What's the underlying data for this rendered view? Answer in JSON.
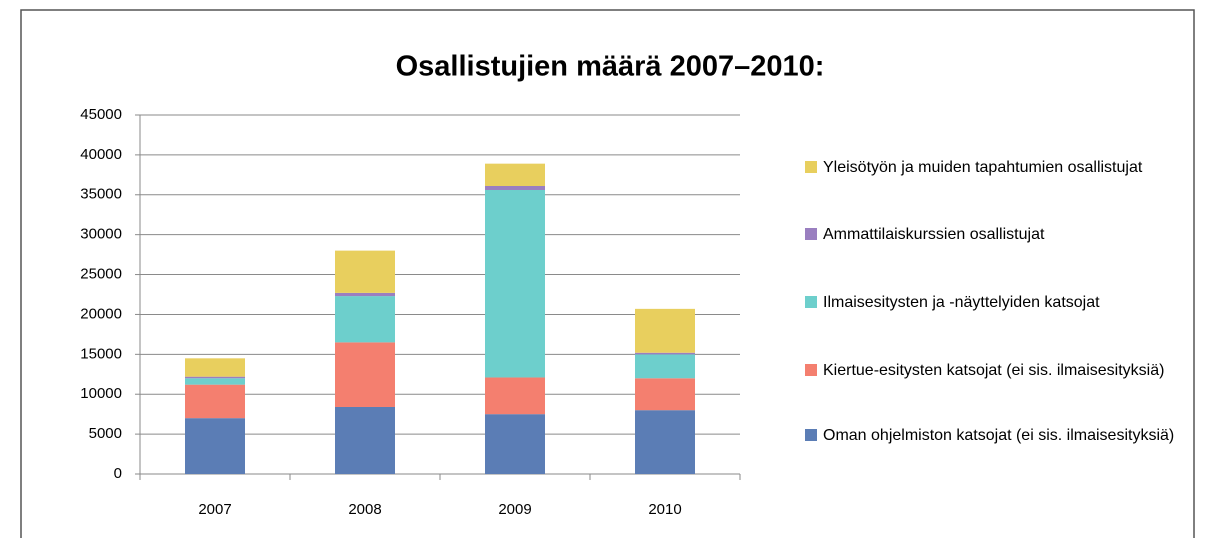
{
  "chart_data": {
    "type": "stacked_bar",
    "title": "Osallistujien määrä 2007–2010:",
    "categories": [
      "2007",
      "2008",
      "2009",
      "2010"
    ],
    "series": [
      {
        "name": "Oman ohjelmiston katsojat (ei sis. ilmaisesityksiä)",
        "color": "#5b7db5",
        "values": [
          7000,
          8400,
          7500,
          8000
        ]
      },
      {
        "name": "Kiertue-esitysten katsojat (ei sis. ilmaisesityksiä)",
        "color": "#f47f6f",
        "values": [
          4200,
          8100,
          4600,
          4000
        ]
      },
      {
        "name": "Ilmaisesitysten ja -näyttelyiden katsojat",
        "color": "#6dcfcc",
        "values": [
          800,
          5800,
          23500,
          3000
        ]
      },
      {
        "name": "Ammattilaiskurssien osallistujat",
        "color": "#9a7fc0",
        "values": [
          200,
          400,
          500,
          200
        ]
      },
      {
        "name": "Yleisötyön ja muiden tapahtumien osallistujat",
        "color": "#e8cf5e",
        "values": [
          2300,
          5300,
          2800,
          5500
        ]
      }
    ],
    "ylim": [
      0,
      45000
    ],
    "yticks": [
      0,
      5000,
      10000,
      15000,
      20000,
      25000,
      30000,
      35000,
      40000,
      45000
    ],
    "grid": true,
    "legend": "right"
  }
}
